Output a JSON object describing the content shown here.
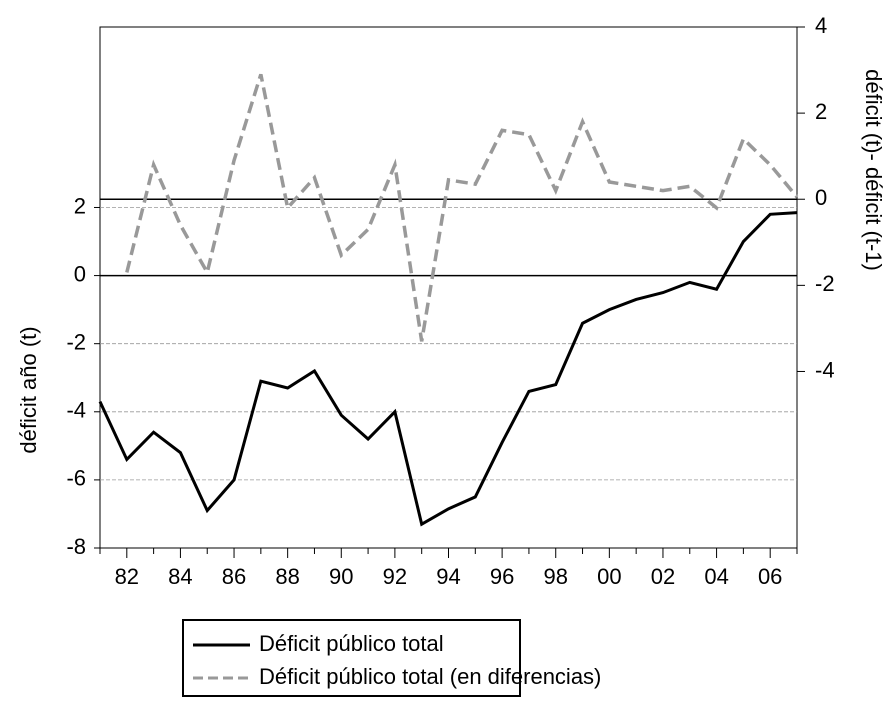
{
  "chart_data": {
    "type": "line",
    "categories": [
      null,
      "82",
      null,
      "84",
      null,
      "86",
      null,
      "88",
      null,
      "90",
      null,
      "92",
      null,
      "94",
      null,
      "96",
      null,
      "98",
      null,
      "00",
      null,
      "02",
      null,
      "04",
      null,
      "06",
      null
    ],
    "series": [
      {
        "name": "Déficit público total",
        "color": "#000000",
        "line_style": "solid",
        "axis": "y",
        "values": [
          -3.7,
          -5.4,
          -4.6,
          -5.2,
          -6.9,
          -6.0,
          -3.1,
          -3.3,
          -2.8,
          -4.1,
          -4.8,
          -4.0,
          -7.3,
          -6.85,
          -6.5,
          -4.9,
          -3.4,
          -3.2,
          -1.4,
          -1.0,
          -0.7,
          -0.5,
          -0.2,
          -0.4,
          1.0,
          1.8,
          1.85
        ]
      },
      {
        "name": "Déficit público total (en diferencias)",
        "color": "#999999",
        "line_style": "dashed",
        "axis": "y2",
        "values": [
          null,
          -1.7,
          0.8,
          -0.6,
          -1.7,
          0.9,
          2.9,
          -0.2,
          0.5,
          -1.3,
          -0.7,
          0.8,
          -3.3,
          0.45,
          0.35,
          1.6,
          1.5,
          0.2,
          1.8,
          0.4,
          0.3,
          0.2,
          0.3,
          -0.2,
          1.4,
          0.8,
          0.05
        ]
      }
    ],
    "ylim": [
      -8,
      7.3
    ],
    "yticks": [
      -8,
      -6,
      -4,
      -2,
      0,
      2
    ],
    "y2lim": [
      -8.1,
      4
    ],
    "y2ticks": [
      -4,
      -2,
      0,
      2,
      4
    ],
    "ylabel": "déficit año (t)",
    "y2label": "déficit (t)- déficit (t-1)",
    "grid": true,
    "legend": "bottom"
  }
}
